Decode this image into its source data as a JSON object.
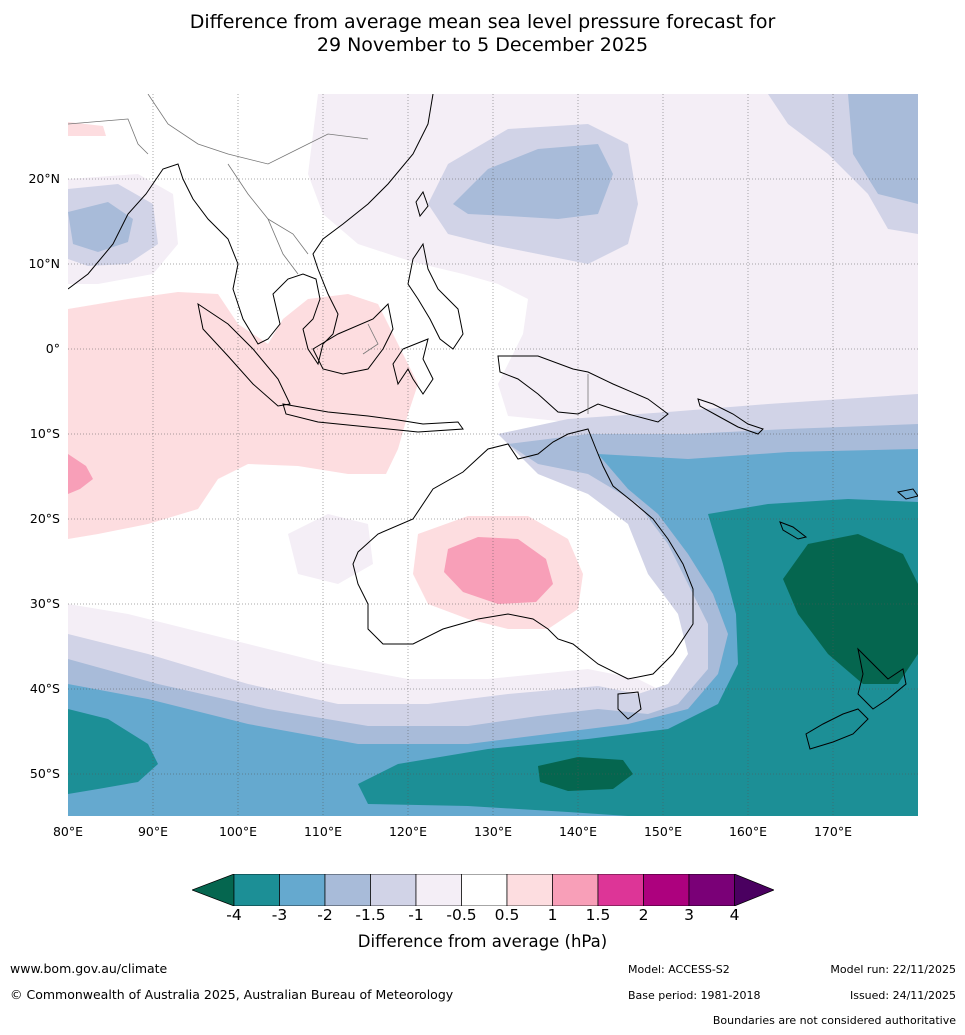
{
  "title": {
    "line1": "Difference from average mean sea level pressure forecast for",
    "line2": "29 November to 5 December 2025"
  },
  "map": {
    "lat_labels": [
      "20°N",
      "10°N",
      "0°",
      "10°S",
      "20°S",
      "30°S",
      "40°S",
      "50°S"
    ],
    "lon_labels": [
      "80°E",
      "90°E",
      "100°E",
      "110°E",
      "120°E",
      "130°E",
      "140°E",
      "150°E",
      "160°E",
      "170°E"
    ]
  },
  "legend": {
    "title": "Difference from average (hPa)",
    "tick_labels": [
      "-4",
      "-3",
      "-2",
      "-1.5",
      "-1",
      "-0.5",
      "0.5",
      "1",
      "1.5",
      "2",
      "3",
      "4"
    ],
    "colors": {
      "below_min": "#05664f",
      "bins": [
        "#1c8f96",
        "#65a9cf",
        "#a8bbd9",
        "#d1d3e7",
        "#f4eef6",
        "#ffffff",
        "#fddde0",
        "#f89fb8",
        "#dd3597",
        "#ad017e",
        "#7a0077"
      ],
      "above_max": "#4a0060",
      "land_outline": "#000000",
      "border": "#777777"
    }
  },
  "footer": {
    "website": "www.bom.gov.au/climate",
    "copyright": "© Commonwealth of Australia 2025, Australian Bureau of Meteorology",
    "model": "Model: ACCESS-S2",
    "base_period": "Base period: 1981-2018",
    "model_run": "Model run: 22/11/2025",
    "issued": "Issued: 24/11/2025",
    "disclaimer": "Boundaries are not considered authoritative"
  }
}
